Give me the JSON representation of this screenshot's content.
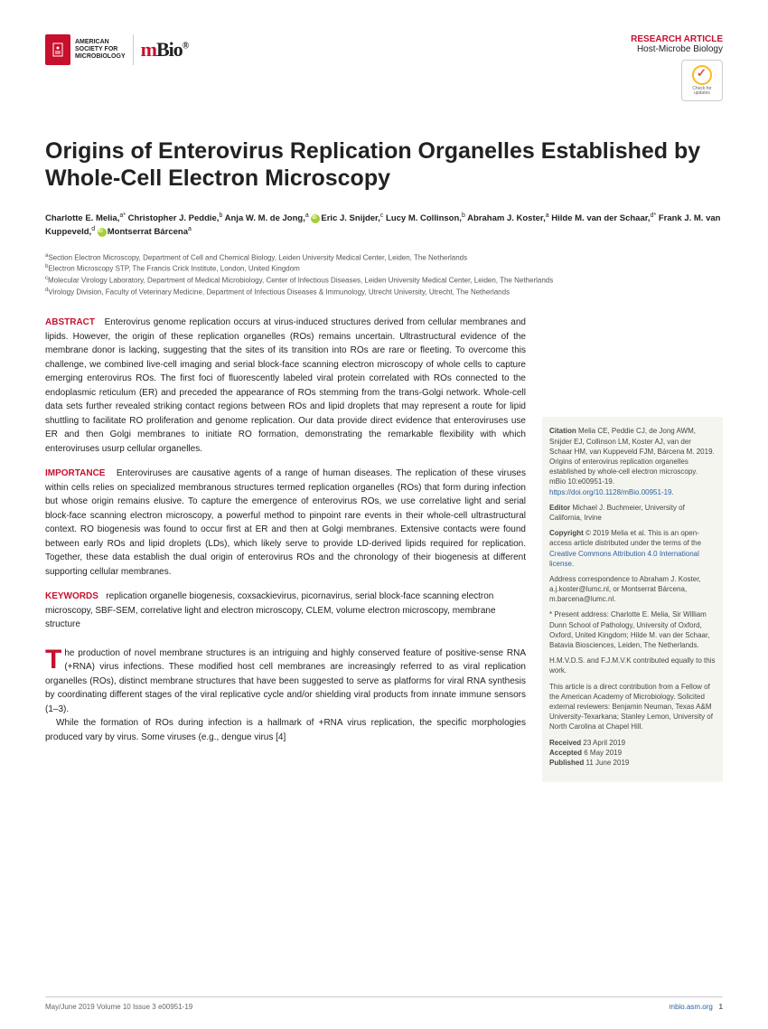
{
  "header": {
    "asm_lines": [
      "AMERICAN",
      "SOCIETY FOR",
      "MICROBIOLOGY"
    ],
    "mbio_m": "m",
    "mbio_bio": "Bio",
    "mbio_reg": "®",
    "article_type": "RESEARCH ARTICLE",
    "article_subtype": "Host-Microbe Biology",
    "crossmark_text": "Check for updates"
  },
  "title": "Origins of Enterovirus Replication Organelles Established by Whole-Cell Electron Microscopy",
  "authors_html": "Charlotte E. Melia,<sup>a*</sup> Christopher J. Peddie,<sup>b</sup> Anja W. M. de Jong,<sup>a</sup> <span class='orcid'></span>Eric J. Snijder,<sup>c</sup> Lucy M. Collinson,<sup>b</sup> Abraham J. Koster,<sup>a</sup> Hilde M. van der Schaar,<sup>d*</sup> Frank J. M. van Kuppeveld,<sup>d</sup> <span class='orcid'></span>Montserrat Bárcena<sup>a</sup>",
  "affiliations": {
    "a": "Section Electron Microscopy, Department of Cell and Chemical Biology, Leiden University Medical Center, Leiden, The Netherlands",
    "b": "Electron Microscopy STP, The Francis Crick Institute, London, United Kingdom",
    "c": "Molecular Virology Laboratory, Department of Medical Microbiology, Center of Infectious Diseases, Leiden University Medical Center, Leiden, The Netherlands",
    "d": "Virology Division, Faculty of Veterinary Medicine, Department of Infectious Diseases & Immunology, Utrecht University, Utrecht, The Netherlands"
  },
  "abstract": {
    "label": "ABSTRACT",
    "text": "Enterovirus genome replication occurs at virus-induced structures derived from cellular membranes and lipids. However, the origin of these replication organelles (ROs) remains uncertain. Ultrastructural evidence of the membrane donor is lacking, suggesting that the sites of its transition into ROs are rare or fleeting. To overcome this challenge, we combined live-cell imaging and serial block-face scanning electron microscopy of whole cells to capture emerging enterovirus ROs. The first foci of fluorescently labeled viral protein correlated with ROs connected to the endoplasmic reticulum (ER) and preceded the appearance of ROs stemming from the trans-Golgi network. Whole-cell data sets further revealed striking contact regions between ROs and lipid droplets that may represent a route for lipid shuttling to facilitate RO proliferation and genome replication. Our data provide direct evidence that enteroviruses use ER and then Golgi membranes to initiate RO formation, demonstrating the remarkable flexibility with which enteroviruses usurp cellular organelles."
  },
  "importance": {
    "label": "IMPORTANCE",
    "text": "Enteroviruses are causative agents of a range of human diseases. The replication of these viruses within cells relies on specialized membranous structures termed replication organelles (ROs) that form during infection but whose origin remains elusive. To capture the emergence of enterovirus ROs, we use correlative light and serial block-face scanning electron microscopy, a powerful method to pinpoint rare events in their whole-cell ultrastructural context. RO biogenesis was found to occur first at ER and then at Golgi membranes. Extensive contacts were found between early ROs and lipid droplets (LDs), which likely serve to provide LD-derived lipids required for replication. Together, these data establish the dual origin of enterovirus ROs and the chronology of their biogenesis at different supporting cellular membranes."
  },
  "keywords": {
    "label": "KEYWORDS",
    "text": "replication organelle biogenesis, coxsackievirus, picornavirus, serial block-face scanning electron microscopy, SBF-SEM, correlative light and electron microscopy, CLEM, volume electron microscopy, membrane structure"
  },
  "body": {
    "p1": "he production of novel membrane structures is an intriguing and highly conserved feature of positive-sense RNA (+RNA) virus infections. These modified host cell membranes are increasingly referred to as viral replication organelles (ROs), distinct membrane structures that have been suggested to serve as platforms for viral RNA synthesis by coordinating different stages of the viral replicative cycle and/or shielding viral products from innate immune sensors (1–3).",
    "p2": "While the formation of ROs during infection is a hallmark of +RNA virus replication, the specific morphologies produced vary by virus. Some viruses (e.g., dengue virus [4]"
  },
  "sidebar": {
    "citation_label": "Citation",
    "citation": " Melia CE, Peddie CJ, de Jong AWM, Snijder EJ, Collinson LM, Koster AJ, van der Schaar HM, van Kuppeveld FJM, Bárcena M. 2019. Origins of enterovirus replication organelles established by whole-cell electron microscopy. mBio 10:e00951-19. ",
    "doi": "https://doi.org/10.1128/mBio.00951-19",
    "editor_label": "Editor",
    "editor": " Michael J. Buchmeier, University of California, Irvine",
    "copyright_label": "Copyright",
    "copyright": " © 2019 Melia et al. This is an open-access article distributed under the terms of the ",
    "cc_link": "Creative Commons Attribution 4.0 International license",
    "address": "Address correspondence to Abraham J. Koster, a.j.koster@lumc.nl, or Montserrat Bárcena, m.barcena@lumc.nl.",
    "present": "* Present address: Charlotte E. Melia, Sir William Dunn School of Pathology, University of Oxford, Oxford, United Kingdom; Hilde M. van der Schaar, Batavia Biosciences, Leiden, The Netherlands.",
    "contrib": "H.M.V.D.S. and F.J.M.V.K contributed equally to this work.",
    "fellow": "This article is a direct contribution from a Fellow of the American Academy of Microbiology. Solicited external reviewers: Benjamin Neuman, Texas A&M University-Texarkana; Stanley Lemon, University of North Carolina at Chapel Hill.",
    "received_label": "Received",
    "received": " 23 April 2019",
    "accepted_label": "Accepted",
    "accepted": " 6 May 2019",
    "published_label": "Published",
    "published": " 11 June 2019"
  },
  "footer": {
    "left": "May/June 2019   Volume 10   Issue 3   e00951-19",
    "center": "®",
    "right_link": "mbio.asm.org",
    "page": "1"
  }
}
